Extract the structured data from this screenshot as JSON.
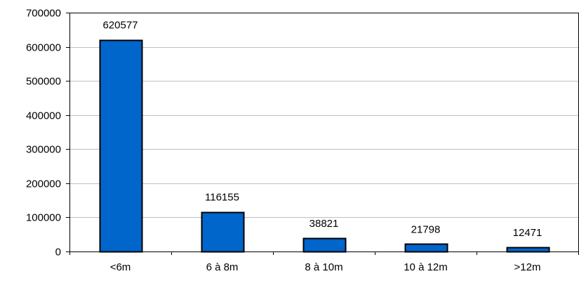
{
  "chart_data": {
    "type": "bar",
    "title": "",
    "xlabel": "",
    "ylabel": "",
    "categories": [
      "<6m",
      "6 à 8m",
      "8 à 10m",
      "10 à 12m",
      ">12m"
    ],
    "values": [
      620577,
      116155,
      38821,
      21798,
      12471
    ],
    "data_labels": [
      "620577",
      "116155",
      "38821",
      "21798",
      "12471"
    ],
    "ylim": [
      0,
      700000
    ],
    "y_ticks": [
      0,
      100000,
      200000,
      300000,
      400000,
      500000,
      600000,
      700000
    ],
    "y_tick_labels": [
      "0",
      "100000",
      "200000",
      "300000",
      "400000",
      "500000",
      "600000",
      "700000"
    ],
    "grid": true,
    "legend": "none",
    "colors": {
      "bar_fill": "#0066CC",
      "bar_stroke": "#000000",
      "grid": "#C0C0C0",
      "axis": "#000000"
    }
  }
}
